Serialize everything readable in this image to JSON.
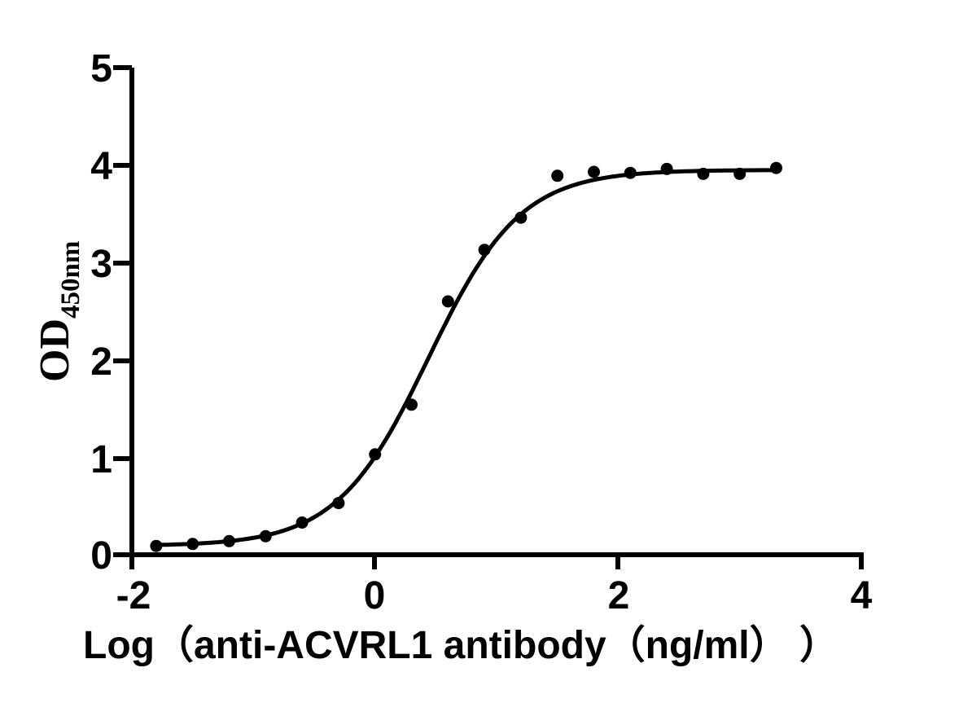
{
  "figure": {
    "background": "#ffffff"
  },
  "chart_data": {
    "type": "scatter",
    "title": "",
    "xlabel": "Log（anti-ACVRL1 antibody（ng/ml） ）",
    "ylabel": "OD",
    "ylabel_subscript": "450nm",
    "xlim": [
      -2,
      4
    ],
    "ylim": [
      0,
      5
    ],
    "x_tick_labels": [
      "-2",
      "0",
      "2",
      "4"
    ],
    "y_tick_labels": [
      "0",
      "1",
      "2",
      "3",
      "4",
      "5"
    ],
    "grid": "off",
    "legend": "none",
    "axis_color": "#000000",
    "line_color": "#000000",
    "point_color": "#000000",
    "point_radius_px": 7.5,
    "points": [
      {
        "x": -1.8,
        "y": 0.09
      },
      {
        "x": -1.5,
        "y": 0.11
      },
      {
        "x": -1.2,
        "y": 0.14
      },
      {
        "x": -0.9,
        "y": 0.19
      },
      {
        "x": -0.6,
        "y": 0.33
      },
      {
        "x": -0.3,
        "y": 0.53
      },
      {
        "x": 0.0,
        "y": 1.03
      },
      {
        "x": 0.3,
        "y": 1.54
      },
      {
        "x": 0.6,
        "y": 2.6
      },
      {
        "x": 0.9,
        "y": 3.13
      },
      {
        "x": 1.2,
        "y": 3.46
      },
      {
        "x": 1.5,
        "y": 3.89
      },
      {
        "x": 1.8,
        "y": 3.93
      },
      {
        "x": 2.1,
        "y": 3.92
      },
      {
        "x": 2.4,
        "y": 3.96
      },
      {
        "x": 2.7,
        "y": 3.91
      },
      {
        "x": 3.0,
        "y": 3.91
      },
      {
        "x": 3.3,
        "y": 3.97
      }
    ],
    "fit": {
      "model": "4PL sigmoid",
      "bottom": 0.09,
      "top": 3.95,
      "logEC50": 0.44,
      "hill": 1.15
    }
  }
}
